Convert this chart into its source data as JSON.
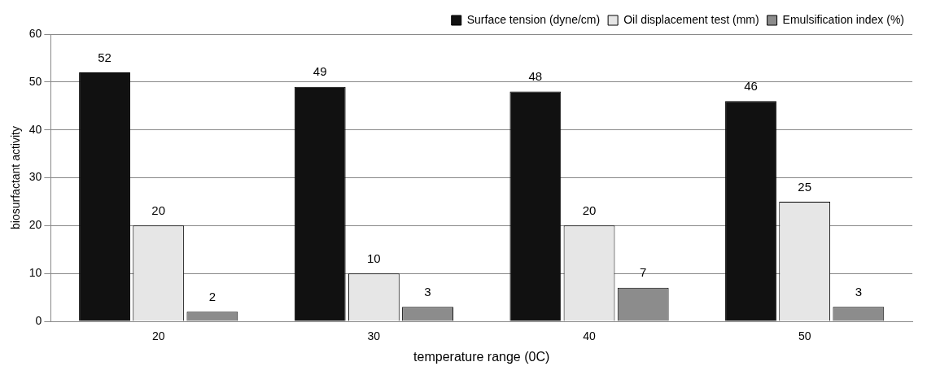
{
  "chart_data": {
    "type": "bar",
    "xlabel": "temperature range (0C)",
    "ylabel": "biosurfactant activity",
    "categories": [
      "20",
      "30",
      "40",
      "50"
    ],
    "series": [
      {
        "name": "Surface tension (dyne/cm)",
        "color": "#111111",
        "values": [
          52,
          49,
          48,
          46
        ]
      },
      {
        "name": "Oil displacement test (mm)",
        "color": "#e6e6e6",
        "values": [
          20,
          10,
          20,
          25
        ]
      },
      {
        "name": "Emulsification index (%)",
        "color": "#8c8c8c",
        "values": [
          2,
          3,
          7,
          3
        ]
      }
    ],
    "ylim": [
      0,
      60
    ],
    "yticks": [
      0,
      10,
      20,
      30,
      40,
      50,
      60
    ],
    "grid": "y",
    "legend": "top right",
    "data_labels": true
  }
}
